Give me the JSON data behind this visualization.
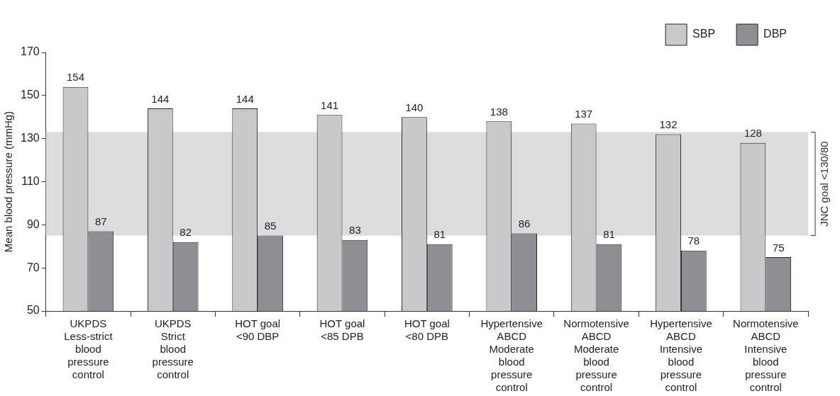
{
  "chart_data": {
    "type": "bar",
    "ylabel": "Mean blood pressure (mmHg)",
    "categories": [
      "UKPDS\nLess-strict\nblood\npressure\ncontrol",
      "UKPDS\nStrict\nblood\npressure\ncontrol",
      "HOT goal\n<90 DBP",
      "HOT goal\n<85 DPB",
      "HOT goal\n<80 DPB",
      "Hypertensive\nABCD\nModerate\nblood\npressure\ncontrol",
      "Normotensive\nABCD\nModerate\nblood\npressure\ncontrol",
      "Hypertensive\nABCD\nIntensive\nblood\npressure\ncontrol",
      "Normotensive\nABCD\nIntensive\nblood\npressure\ncontrol"
    ],
    "series": [
      {
        "name": "SBP",
        "color": "#c8c9cb",
        "values": [
          154,
          144,
          144,
          141,
          140,
          138,
          137,
          132,
          128
        ]
      },
      {
        "name": "DBP",
        "color": "#8e8f93",
        "values": [
          87,
          82,
          85,
          83,
          81,
          86,
          81,
          78,
          75
        ]
      }
    ],
    "ylim": [
      50,
      170
    ],
    "yticks": [
      50,
      70,
      90,
      110,
      130,
      150,
      170
    ],
    "bands": [
      {
        "axis": "y",
        "from": 85,
        "to": 133,
        "label": "JNC goal <130/80",
        "color": "#dcdcde"
      }
    ],
    "data_labels": true,
    "grid": false,
    "legend": "top"
  }
}
